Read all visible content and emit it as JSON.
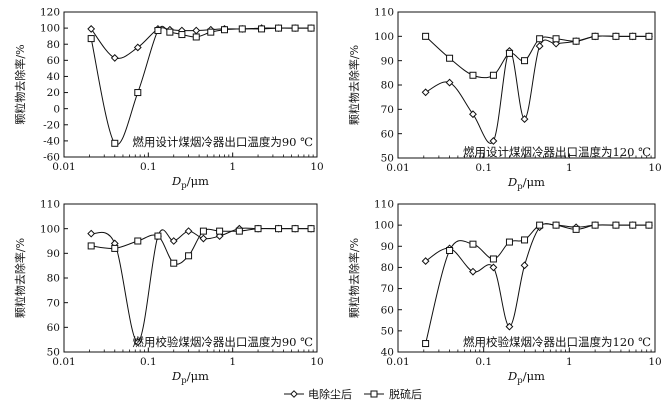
{
  "legend": {
    "items": [
      {
        "label": "电除尘后",
        "marker": "diamond"
      },
      {
        "label": "脱硫后",
        "marker": "square"
      }
    ]
  },
  "chart_data": [
    {
      "type": "line",
      "annotation": "燃用设计煤烟冷器出口温度为90 ℃",
      "ylabel": "颗粒物去除率/%",
      "xlabel_main": "D",
      "xlabel_sub": "p",
      "xlabel_unit": "/μm",
      "xscale": "log",
      "xlim": [
        0.01,
        10
      ],
      "ylim": [
        -60,
        120
      ],
      "xticks": [
        "0.01",
        "0.1",
        "1",
        "10"
      ],
      "yticks": [
        "-60",
        "-40",
        "-20",
        "0",
        "20",
        "40",
        "60",
        "80",
        "100",
        "120"
      ],
      "series": [
        {
          "name": "电除尘后",
          "marker": "diamond",
          "x": [
            0.021,
            0.04,
            0.075,
            0.13,
            0.18,
            0.25,
            0.37,
            0.55,
            0.8,
            1.3,
            2.2,
            3.5,
            5.5,
            8.5
          ],
          "y": [
            99,
            63,
            76,
            99,
            98,
            97,
            97,
            98,
            99,
            99,
            100,
            100,
            100,
            100
          ]
        },
        {
          "name": "脱硫后",
          "marker": "square",
          "x": [
            0.021,
            0.04,
            0.075,
            0.13,
            0.18,
            0.25,
            0.37,
            0.55,
            0.8,
            1.3,
            2.2,
            3.5,
            5.5,
            8.5
          ],
          "y": [
            87,
            -43,
            20,
            97,
            95,
            92,
            89,
            95,
            98,
            99,
            99,
            100,
            100,
            100
          ]
        }
      ]
    },
    {
      "type": "line",
      "annotation": "燃用设计煤烟冷器出口温度为120 ℃",
      "ylabel": "颗粒物去除率/%",
      "xlabel_main": "D",
      "xlabel_sub": "p",
      "xlabel_unit": "/μm",
      "xscale": "log",
      "xlim": [
        0.01,
        10
      ],
      "ylim": [
        50,
        110
      ],
      "xticks": [
        "0.01",
        "0.1",
        "1",
        "10"
      ],
      "yticks": [
        "50",
        "60",
        "70",
        "80",
        "90",
        "100",
        "110"
      ],
      "series": [
        {
          "name": "电除尘后",
          "marker": "diamond",
          "x": [
            0.021,
            0.04,
            0.075,
            0.13,
            0.2,
            0.3,
            0.45,
            0.7,
            1.2,
            2.0,
            3.5,
            5.5,
            8.5
          ],
          "y": [
            77,
            81,
            68,
            57,
            94,
            66,
            96,
            97,
            98,
            100,
            100,
            100,
            100
          ]
        },
        {
          "name": "脱硫后",
          "marker": "square",
          "x": [
            0.021,
            0.04,
            0.075,
            0.13,
            0.2,
            0.3,
            0.45,
            0.7,
            1.2,
            2.0,
            3.5,
            5.5,
            8.5
          ],
          "y": [
            100,
            91,
            84,
            84,
            93,
            90,
            99,
            99,
            98,
            100,
            100,
            100,
            100
          ]
        }
      ]
    },
    {
      "type": "line",
      "annotation": "燃用校验煤烟冷器出口温度为90 ℃",
      "ylabel": "颗粒物去除率/%",
      "xlabel_main": "D",
      "xlabel_sub": "p",
      "xlabel_unit": "/μm",
      "xscale": "log",
      "xlim": [
        0.01,
        10
      ],
      "ylim": [
        50,
        110
      ],
      "xticks": [
        "0.01",
        "0.1",
        "1",
        "10"
      ],
      "yticks": [
        "50",
        "60",
        "70",
        "80",
        "90",
        "100",
        "110"
      ],
      "series": [
        {
          "name": "电除尘后",
          "marker": "diamond",
          "x": [
            0.021,
            0.04,
            0.075,
            0.13,
            0.2,
            0.3,
            0.45,
            0.7,
            1.2,
            2.0,
            3.5,
            5.5,
            8.5
          ],
          "y": [
            98,
            94,
            54,
            97,
            95,
            99,
            96,
            97,
            100,
            100,
            100,
            100,
            100
          ]
        },
        {
          "name": "脱硫后",
          "marker": "square",
          "x": [
            0.021,
            0.04,
            0.075,
            0.13,
            0.2,
            0.3,
            0.45,
            0.7,
            1.2,
            2.0,
            3.5,
            5.5,
            8.5
          ],
          "y": [
            93,
            92,
            95,
            97,
            86,
            89,
            99,
            99,
            99,
            100,
            100,
            100,
            100
          ]
        }
      ]
    },
    {
      "type": "line",
      "annotation": "燃用校验煤烟冷器出口温度为120 ℃",
      "ylabel": "颗粒物去除率/%",
      "xlabel_main": "D",
      "xlabel_sub": "p",
      "xlabel_unit": "/μm",
      "xscale": "log",
      "xlim": [
        0.01,
        10
      ],
      "ylim": [
        40,
        110
      ],
      "xticks": [
        "0.01",
        "0.1",
        "1",
        "10"
      ],
      "yticks": [
        "40",
        "50",
        "60",
        "70",
        "80",
        "90",
        "100",
        "110"
      ],
      "series": [
        {
          "name": "电除尘后",
          "marker": "diamond",
          "x": [
            0.021,
            0.04,
            0.075,
            0.13,
            0.2,
            0.3,
            0.45,
            0.7,
            1.2,
            2.0,
            3.5,
            5.5,
            8.5
          ],
          "y": [
            83,
            89,
            78,
            80,
            52,
            81,
            99,
            100,
            99,
            100,
            100,
            100,
            100
          ]
        },
        {
          "name": "脱硫后",
          "marker": "square",
          "x": [
            0.021,
            0.04,
            0.075,
            0.13,
            0.2,
            0.3,
            0.45,
            0.7,
            1.2,
            2.0,
            3.5,
            5.5,
            8.5
          ],
          "y": [
            44,
            88,
            91,
            84,
            92,
            93,
            100,
            100,
            98,
            100,
            100,
            100,
            100
          ]
        }
      ]
    }
  ]
}
